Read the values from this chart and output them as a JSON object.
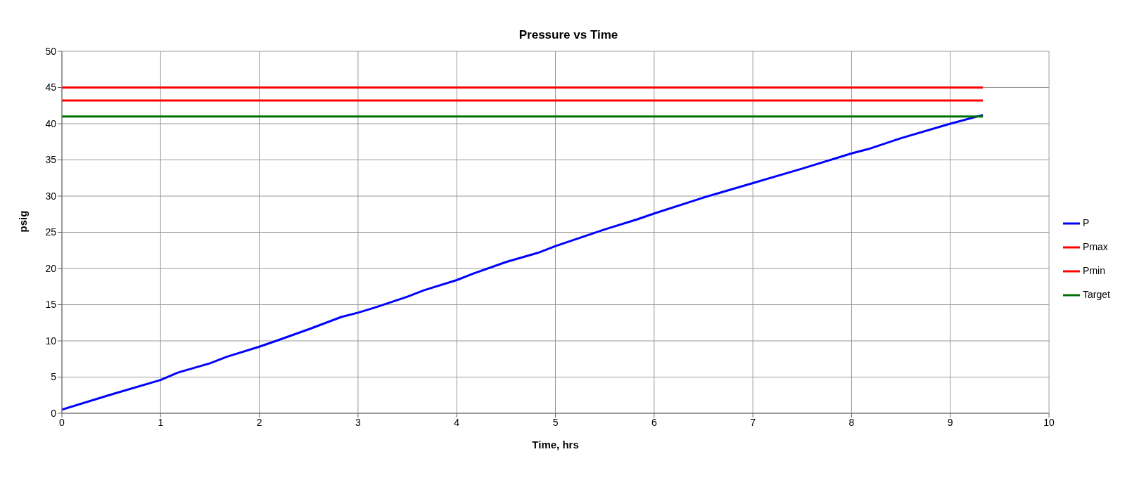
{
  "chart_data": {
    "type": "line",
    "title": "Pressure vs Time",
    "xlabel": "Time, hrs",
    "ylabel": "psig",
    "xlim": [
      0,
      10
    ],
    "xticks": [
      0,
      1,
      2,
      3,
      4,
      5,
      6,
      7,
      8,
      9,
      10
    ],
    "ylim": [
      0,
      50
    ],
    "yticks": [
      0,
      5,
      10,
      15,
      20,
      25,
      30,
      35,
      40,
      45,
      50
    ],
    "grid": true,
    "legend": "right",
    "marker": "none",
    "line_style": "solid",
    "series": [
      {
        "name": "P",
        "color": "#0000ff",
        "x": [
          0,
          0.5,
          1,
          1.17,
          1.5,
          1.67,
          2,
          2.17,
          2.5,
          2.83,
          3,
          3.17,
          3.5,
          3.67,
          4,
          4.17,
          4.5,
          4.83,
          5,
          5.5,
          5.83,
          6,
          6.5,
          7,
          7.5,
          8,
          8.17,
          8.5,
          9,
          9.33
        ],
        "values": [
          0.5,
          2.6,
          4.6,
          5.6,
          6.9,
          7.8,
          9.2,
          10,
          11.6,
          13.3,
          13.9,
          14.6,
          16.1,
          17,
          18.4,
          19.3,
          20.9,
          22.2,
          23.1,
          25.4,
          26.8,
          27.6,
          29.8,
          31.8,
          33.8,
          35.9,
          36.5,
          38,
          40,
          41.2
        ]
      },
      {
        "name": "Pmax",
        "color": "#ff0000",
        "x": [
          0,
          9.33
        ],
        "values": [
          45,
          45
        ]
      },
      {
        "name": "Pmin",
        "color": "#ff0000",
        "x": [
          0,
          9.33
        ],
        "values": [
          43.2,
          43.2
        ]
      },
      {
        "name": "Target",
        "color": "#007000",
        "x": [
          0,
          9.33
        ],
        "values": [
          41,
          41
        ]
      }
    ]
  }
}
